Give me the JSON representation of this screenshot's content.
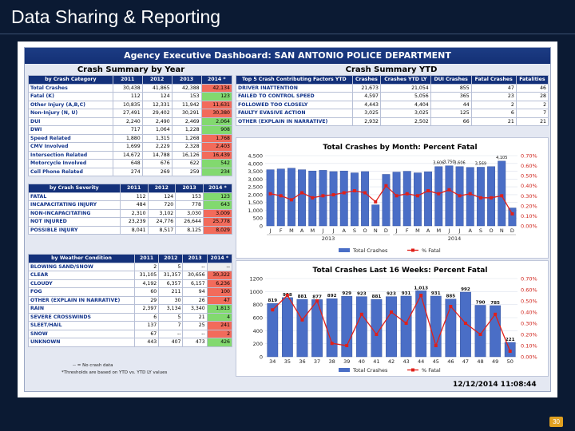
{
  "slide": {
    "title": "Data Sharing & Reporting",
    "page_number": "30"
  },
  "dashboard": {
    "header": "Agency Executive Dashboard: SAN ANTONIO POLICE DEPARTMENT",
    "crash_summary_year": {
      "title": "Crash Summary by Year",
      "headers": [
        "by Crash Category",
        "2011",
        "2012",
        "2013",
        "2014 *"
      ],
      "rows": [
        [
          "Total Crashes",
          "30,438",
          "41,865",
          "42,388",
          "42,134"
        ],
        [
          "Fatal (K)",
          "112",
          "124",
          "153",
          "123"
        ],
        [
          "Other Injury (A,B,C)",
          "10,835",
          "12,331",
          "11,942",
          "11,631"
        ],
        [
          "Non-Injury (N, U)",
          "27,491",
          "29,402",
          "30,291",
          "30,380"
        ],
        [
          "DUI",
          "2,240",
          "2,490",
          "2,469",
          "2,064"
        ],
        [
          "DWI",
          "717",
          "1,064",
          "1,228",
          "908"
        ],
        [
          "Speed Related",
          "1,880",
          "1,315",
          "1,268",
          "1,768"
        ],
        [
          "CMV Involved",
          "1,699",
          "2,229",
          "2,328",
          "2,403"
        ],
        [
          "Intersection Related",
          "14,672",
          "14,788",
          "16,126",
          "16,439"
        ],
        [
          "Motorcycle Involved",
          "648",
          "676",
          "622",
          "542"
        ],
        [
          "Cell Phone Related",
          "274",
          "269",
          "259",
          "234"
        ]
      ],
      "highlight": [
        "#f26b5b",
        "#82d96f",
        "#f26b5b",
        "#f26b5b",
        "#82d96f",
        "#82d96f",
        "#f26b5b",
        "#f26b5b",
        "#f26b5b",
        "#82d96f",
        "#82d96f"
      ]
    },
    "severity": {
      "headers": [
        "by Crash Severity",
        "2011",
        "2012",
        "2013",
        "2014 *"
      ],
      "rows": [
        [
          "FATAL",
          "112",
          "124",
          "153",
          "123"
        ],
        [
          "INCAPACITATING INJURY",
          "484",
          "720",
          "778",
          "643"
        ],
        [
          "NON-INCAPACITATING",
          "2,310",
          "3,102",
          "3,030",
          "3,009"
        ],
        [
          "NOT INJURED",
          "23,239",
          "24,776",
          "26,644",
          "25,778"
        ],
        [
          "POSSIBLE INJURY",
          "8,041",
          "8,517",
          "8,125",
          "8,029"
        ]
      ],
      "highlight": [
        "#82d96f",
        "#82d96f",
        "#f26b5b",
        "#f26b5b",
        "#f26b5b"
      ]
    },
    "weather": {
      "headers": [
        "by Weather Condition",
        "2011",
        "2012",
        "2013",
        "2014 *"
      ],
      "rows": [
        [
          "BLOWING SAND/SNOW",
          "2",
          "5",
          "--",
          "--"
        ],
        [
          "CLEAR",
          "31,105",
          "31,357",
          "30,656",
          "30,322"
        ],
        [
          "CLOUDY",
          "4,192",
          "6,357",
          "6,157",
          "6,236"
        ],
        [
          "FOG",
          "60",
          "211",
          "94",
          "100"
        ],
        [
          "OTHER (EXPLAIN IN NARRATIVE)",
          "29",
          "30",
          "26",
          "47"
        ],
        [
          "RAIN",
          "2,397",
          "3,134",
          "3,340",
          "1,813"
        ],
        [
          "SEVERE CROSSWINDS",
          "6",
          "5",
          "21",
          "4"
        ],
        [
          "SLEET/HAIL",
          "137",
          "7",
          "25",
          "241"
        ],
        [
          "SNOW",
          "67",
          "--",
          "--",
          "2"
        ],
        [
          "UNKNOWN",
          "443",
          "407",
          "473",
          "426"
        ]
      ],
      "highlight": [
        "#f0f0f0",
        "#f26b5b",
        "#f26b5b",
        "#f26b5b",
        "#f26b5b",
        "#82d96f",
        "#82d96f",
        "#f26b5b",
        "#f26b5b",
        "#82d96f"
      ]
    },
    "notes": [
      "-- = No crash data",
      "*Thresholds are based on YTD vs. YTD LY values"
    ],
    "crash_summary_ytd": {
      "title": "Crash Summary YTD",
      "headers": [
        "Top 5 Crash Contributing Factors YTD",
        "Crashes",
        "Crashes YTD LY",
        "DUI Crashes",
        "Fatal Crashes",
        "Fatalities"
      ],
      "rows": [
        [
          "DRIVER INATTENTION",
          "21,673",
          "21,054",
          "855",
          "47",
          "46"
        ],
        [
          "FAILED TO CONTROL SPEED",
          "4,597",
          "5,056",
          "365",
          "23",
          "28"
        ],
        [
          "FOLLOWED TOO CLOSELY",
          "4,443",
          "4,404",
          "44",
          "2",
          "2"
        ],
        [
          "FAULTY EVASIVE ACTION",
          "3,025",
          "3,025",
          "125",
          "6",
          "7"
        ],
        [
          "OTHER (EXPLAIN IN NARRATIVE)",
          "2,932",
          "2,502",
          "66",
          "21",
          "21"
        ]
      ]
    },
    "timestamp": "12/12/2014 11:08:44"
  },
  "chart_data": [
    {
      "type": "bar",
      "title": "Total Crashes by Month: Percent Fatal",
      "categories": [
        "J",
        "F",
        "M",
        "A",
        "M",
        "J",
        "J",
        "A",
        "S",
        "O",
        "N",
        "D",
        "J",
        "F",
        "M",
        "A",
        "M",
        "J",
        "J",
        "A",
        "S",
        "O",
        "N",
        "D"
      ],
      "group_labels": [
        "2013",
        "2014"
      ],
      "series": [
        {
          "name": "Total Crashes",
          "values": [
            3600,
            3650,
            3700,
            3600,
            3520,
            3560,
            3480,
            3520,
            3400,
            3480,
            1350,
            3300,
            3450,
            3500,
            3400,
            3470,
            3800,
            3850,
            3800,
            3750,
            3760,
            3800,
            4150,
            1150
          ]
        },
        {
          "name": "% Fatal",
          "values": [
            0.32,
            0.3,
            0.26,
            0.33,
            0.28,
            0.3,
            0.31,
            0.33,
            0.35,
            0.33,
            0.24,
            0.4,
            0.3,
            0.32,
            0.3,
            0.35,
            0.32,
            0.36,
            0.3,
            0.32,
            0.28,
            0.28,
            0.3,
            0.12
          ]
        }
      ],
      "yticks_left": [
        "0",
        "500",
        "1,000",
        "1,500",
        "2,000",
        "2,500",
        "3,000",
        "3,500",
        "4,000",
        "4,500"
      ],
      "yticks_right": [
        "0.00%",
        "0.10%",
        "0.20%",
        "0.30%",
        "0.40%",
        "0.50%",
        "0.60%",
        "0.70%"
      ],
      "ylim": [
        0,
        4500
      ],
      "ylim_right": [
        0,
        0.7
      ],
      "data_labels_visible": [
        "3,606",
        "3,750",
        "4,105",
        "3,606",
        "3,569"
      ],
      "legend": [
        "Total Crashes",
        "% Fatal"
      ]
    },
    {
      "type": "bar",
      "title": "Total Crashes Last 16 Weeks: Percent Fatal",
      "categories": [
        "34",
        "35",
        "36",
        "37",
        "38",
        "39",
        "40",
        "41",
        "42",
        "43",
        "44",
        "45",
        "46",
        "47",
        "48",
        "49",
        "50"
      ],
      "series": [
        {
          "name": "Total Crashes",
          "values": [
            819,
            908,
            881,
            877,
            892,
            929,
            923,
            881,
            923,
            931,
            1013,
            931,
            885,
            992,
            790,
            785,
            221
          ]
        },
        {
          "name": "% Fatal",
          "values": [
            0.42,
            0.55,
            0.33,
            0.5,
            0.12,
            0.1,
            0.38,
            0.2,
            0.4,
            0.3,
            0.55,
            0.1,
            0.45,
            0.3,
            0.2,
            0.38,
            0.05
          ]
        }
      ],
      "bar_labels": [
        "819",
        "908",
        "881",
        "877",
        "892",
        "929",
        "923",
        "881",
        "923",
        "931",
        "1,013",
        "931",
        "885",
        "992",
        "790",
        "785",
        "221"
      ],
      "yticks_left": [
        "0",
        "200",
        "400",
        "600",
        "800",
        "1000",
        "1200"
      ],
      "yticks_right": [
        "0.00%",
        "0.10%",
        "0.20%",
        "0.30%",
        "0.40%",
        "0.50%",
        "0.60%",
        "0.70%"
      ],
      "ylim": [
        0,
        1200
      ],
      "ylim_right": [
        0,
        0.7
      ],
      "legend": [
        "Total Crashes",
        "% Fatal"
      ]
    }
  ]
}
